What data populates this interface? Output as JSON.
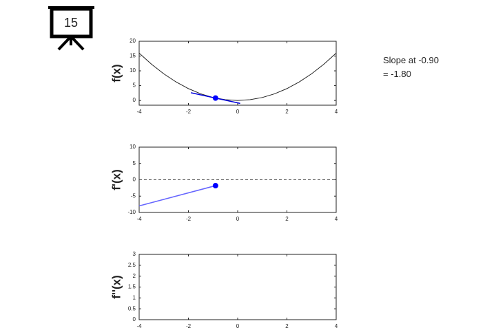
{
  "slide_number": "15",
  "annotation": [
    "Slope at -0.90",
    "= -1.80"
  ],
  "chart_data": [
    {
      "type": "line",
      "ylabel": "f(x)",
      "xlim": [
        -4,
        4
      ],
      "xticks": [
        -4,
        -2,
        0,
        2,
        4
      ],
      "ylim": [
        -1.6,
        20
      ],
      "yticks": [
        0,
        5,
        10,
        15,
        20
      ],
      "series": [
        {
          "color": "#222222",
          "marker": false,
          "x": [
            -4,
            -3.5,
            -3,
            -2.5,
            -2,
            -1.5,
            -1,
            -0.5,
            0,
            0.5,
            1,
            1.5,
            2,
            2.5,
            3,
            3.5,
            4
          ],
          "values": [
            16,
            12.25,
            9,
            6.25,
            4,
            2.25,
            1,
            0.25,
            0,
            0.25,
            1,
            2.25,
            4,
            6.25,
            9,
            12.25,
            16
          ]
        },
        {
          "color": "#0000dd",
          "marker": false,
          "x": [
            -1.9,
            0.1
          ],
          "values": [
            2.61,
            -0.99
          ]
        },
        {
          "color": "#0000ff",
          "marker": true,
          "x": [
            -0.9
          ],
          "values": [
            0.81
          ]
        }
      ]
    },
    {
      "type": "line",
      "ylabel": "f'(x)",
      "xlim": [
        -4,
        4
      ],
      "xticks": [
        -4,
        -2,
        0,
        2,
        4
      ],
      "ylim": [
        -10,
        10
      ],
      "yticks": [
        -10,
        -5,
        0,
        5,
        10
      ],
      "hline": 0,
      "series": [
        {
          "color": "#6666ff",
          "marker": false,
          "x": [
            -4,
            -0.9
          ],
          "values": [
            -8,
            -1.8
          ]
        },
        {
          "color": "#0000ff",
          "marker": true,
          "x": [
            -0.9
          ],
          "values": [
            -1.8
          ]
        }
      ]
    },
    {
      "type": "line",
      "ylabel": "f''(x)",
      "xlim": [
        -4,
        4
      ],
      "xticks": [
        -4,
        -2,
        0,
        2,
        4
      ],
      "ylim": [
        0,
        3
      ],
      "yticks": [
        0,
        0.5,
        1,
        1.5,
        2,
        2.5,
        3
      ],
      "series": []
    }
  ]
}
